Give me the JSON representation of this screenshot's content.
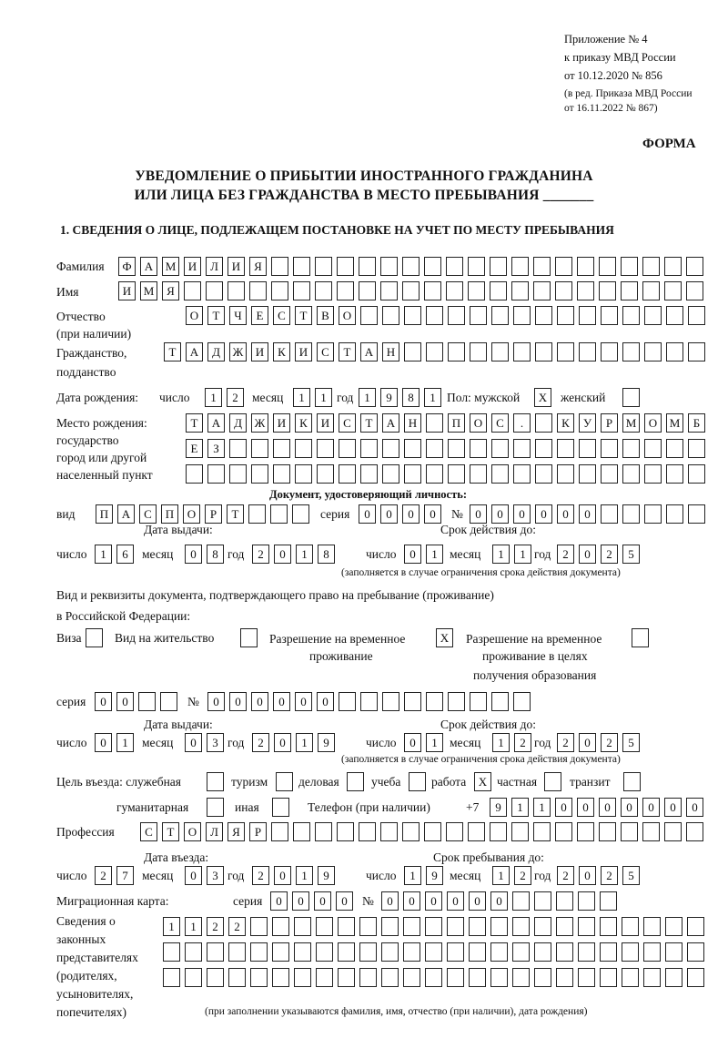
{
  "header": {
    "appendix_line1": "Приложение № 4",
    "appendix_line2": "к приказу МВД России",
    "appendix_line3": "от 10.12.2020 № 856",
    "revision_line1": "(в ред. Приказа МВД России",
    "revision_line2": "от 16.11.2022 № 867)",
    "form_label": "ФОРМА",
    "title_line1": "УВЕДОМЛЕНИЕ О ПРИБЫТИИ ИНОСТРАННОГО ГРАЖДАНИНА",
    "title_line2": "ИЛИ ЛИЦА БЕЗ ГРАЖДАНСТВА В МЕСТО ПРЕБЫВАНИЯ _______"
  },
  "section1": {
    "heading": "1. СВЕДЕНИЯ О ЛИЦЕ, ПОДЛЕЖАЩЕМ ПОСТАНОВКЕ НА УЧЕТ ПО МЕСТУ ПРЕБЫВАНИЯ",
    "surname": {
      "label": "Фамилия",
      "value": "ФАМИЛИЯ"
    },
    "name": {
      "label": "Имя",
      "value": "ИМЯ"
    },
    "patronymic": {
      "label": "Отчество",
      "label2": "(при наличии)",
      "value": "ОТЧЕСТВО"
    },
    "citizenship": {
      "label": "Гражданство,",
      "label2": "подданство",
      "value": "ТАДЖИКИСТАН"
    },
    "birth_date": {
      "label": "Дата рождения:",
      "day_label": "число",
      "month_label": "месяц",
      "year_label": "год",
      "day": "12",
      "month": "11",
      "year": "1981"
    },
    "sex": {
      "label": "Пол: мужской",
      "female_label": "женский",
      "male": "X",
      "female": ""
    },
    "birth_place": {
      "label1": "Место рождения:",
      "label2": "государство",
      "label3": "город или другой",
      "label4": "населенный пункт",
      "row1": "ТАДЖИКИСТАН ПОС. КУРМОМБ",
      "row2": "ЕЗ",
      "row3": ""
    },
    "id_document": {
      "heading": "Документ, удостоверяющий личность:",
      "type_label": "вид",
      "type": "ПАСПОРТ",
      "series_label": "серия",
      "series": "0000",
      "number_label": "№",
      "number": "000000",
      "issue_label": "Дата выдачи:",
      "valid_label": "Срок действия до:",
      "day_label": "число",
      "month_label": "месяц",
      "year_label": "год",
      "issue_day": "16",
      "issue_month": "08",
      "issue_year": "2018",
      "valid_day": "01",
      "valid_month": "11",
      "valid_year": "2025",
      "note": "(заполняется в случае ограничения срока действия документа)"
    },
    "residence_document": {
      "heading1": "Вид и реквизиты документа, подтверждающего право на пребывание (проживание)",
      "heading2": "в Российской Федерации:",
      "visa_label": "Виза",
      "visa": "",
      "permit_label": "Вид на жительство",
      "permit": "",
      "trp_label1": "Разрешение на временное",
      "trp_label2": "проживание",
      "trp": "X",
      "trp_edu_label1": "Разрешение на временное",
      "trp_edu_label2": "проживание в целях",
      "trp_edu_label3": "получения образования",
      "trp_edu": "",
      "series_label": "серия",
      "series": "00",
      "number_label": "№",
      "number": "000000",
      "issue_label": "Дата выдачи:",
      "valid_label": "Срок действия до:",
      "day_label": "число",
      "month_label": "месяц",
      "year_label": "год",
      "issue_day": "01",
      "issue_month": "03",
      "issue_year": "2019",
      "valid_day": "01",
      "valid_month": "12",
      "valid_year": "2025",
      "note": "(заполняется в случае ограничения срока действия документа)"
    },
    "purpose": {
      "label": "Цель въезда: служебная",
      "service": "",
      "tourism_label": "туризм",
      "tourism": "",
      "business_label": "деловая",
      "business": "",
      "study_label": "учеба",
      "study": "",
      "work_label": "работа",
      "work": "X",
      "private_label": "частная",
      "private": "",
      "transit_label": "транзит",
      "transit": "",
      "humanitarian_label": "гуманитарная",
      "humanitarian": "",
      "other_label": "иная",
      "other": ""
    },
    "phone": {
      "label": "Телефон (при наличии)",
      "prefix": "+7",
      "value": "9110000000"
    },
    "profession": {
      "label": "Профессия",
      "value": "СТОЛЯР"
    },
    "entry": {
      "entry_label": "Дата въезда:",
      "stay_label": "Срок пребывания до:",
      "day_label": "число",
      "month_label": "месяц",
      "year_label": "год",
      "entry_day": "27",
      "entry_month": "03",
      "entry_year": "2019",
      "stay_day": "19",
      "stay_month": "12",
      "stay_year": "2025"
    },
    "migration_card": {
      "label": "Миграционная карта:",
      "series_label": "серия",
      "series": "0000",
      "number_label": "№",
      "number": "000000"
    },
    "representatives": {
      "label1": "Сведения о",
      "label2": "законных",
      "label3": "представителях",
      "label4": "(родителях,",
      "label5": "усыновителях,",
      "label6": "попечителях)",
      "row1": "1122",
      "row2": "",
      "row3": "",
      "note": "(при заполнении указываются фамилия, имя, отчество (при наличии), дата рождения)"
    }
  }
}
